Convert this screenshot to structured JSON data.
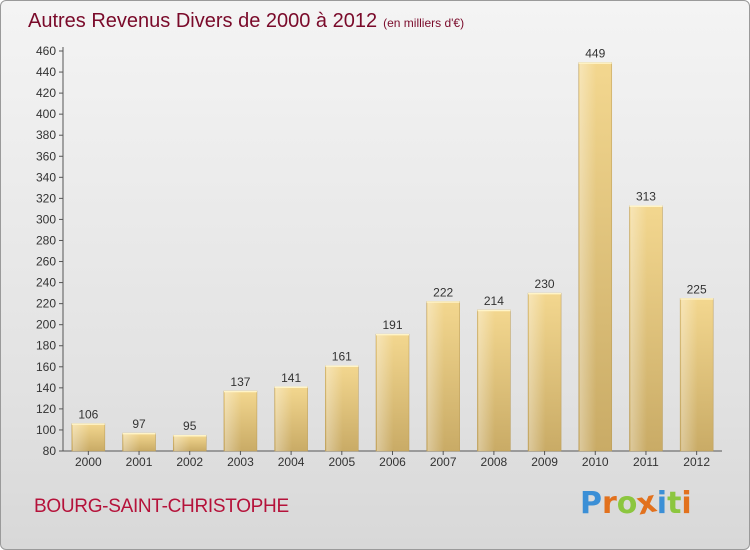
{
  "chart_data": {
    "type": "bar",
    "title": "Autres Revenus Divers de 2000 à 2012",
    "subtitle": "(en milliers d'€)",
    "categories": [
      "2000",
      "2001",
      "2002",
      "2003",
      "2004",
      "2005",
      "2006",
      "2007",
      "2008",
      "2009",
      "2010",
      "2011",
      "2012"
    ],
    "values": [
      106,
      97,
      95,
      137,
      141,
      161,
      191,
      222,
      214,
      230,
      449,
      313,
      225
    ],
    "ylim": [
      80,
      460
    ],
    "yticks": [
      80,
      100,
      120,
      140,
      160,
      180,
      200,
      220,
      240,
      260,
      280,
      300,
      320,
      340,
      360,
      380,
      400,
      420,
      440,
      460
    ],
    "grid": false,
    "bar_color": "#e9c97d"
  },
  "location": "BOURG-SAINT-CHRISTOPHE",
  "logo": {
    "text": "Proxiti",
    "letters": [
      {
        "ch": "P",
        "color": "#3b8fd6"
      },
      {
        "ch": "r",
        "color": "#e2711d"
      },
      {
        "ch": "o",
        "color": "#8cc63f"
      },
      {
        "ch": "x",
        "color": "#e2711d"
      },
      {
        "ch": "i",
        "color": "#3b8fd6"
      },
      {
        "ch": "t",
        "color": "#8cc63f"
      },
      {
        "ch": "i",
        "color": "#e2711d"
      }
    ]
  }
}
